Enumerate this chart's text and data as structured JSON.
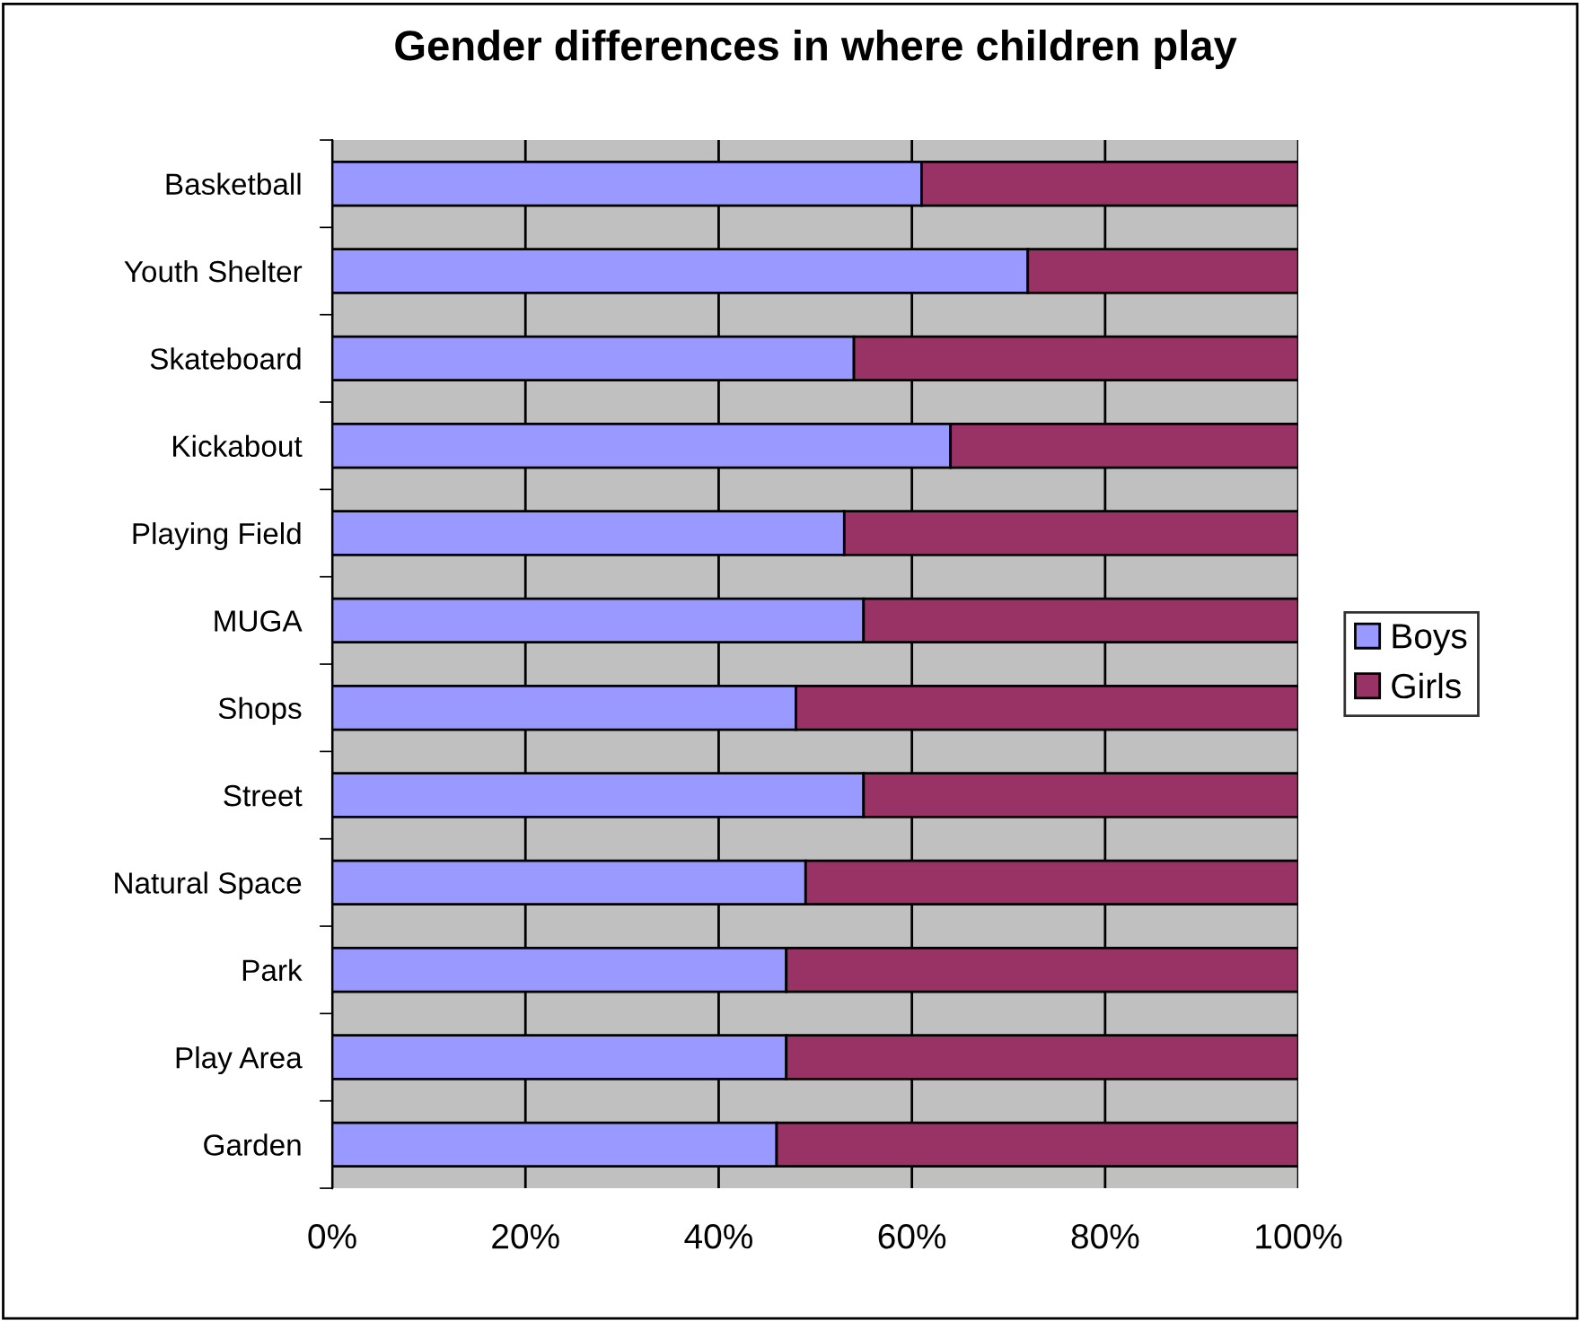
{
  "chart_data": {
    "type": "bar",
    "title": "Gender differences in where children play",
    "orientation": "horizontal",
    "stacked": true,
    "categories": [
      "Basketball",
      "Youth Shelter",
      "Skateboard",
      "Kickabout",
      "Playing Field",
      "MUGA",
      "Shops",
      "Street",
      "Natural Space",
      "Park",
      "Play Area",
      "Garden"
    ],
    "series": [
      {
        "name": "Boys",
        "color": "#9999ff",
        "values": [
          61,
          72,
          54,
          64,
          53,
          55,
          48,
          55,
          49,
          47,
          47,
          46
        ]
      },
      {
        "name": "Girls",
        "color": "#993366",
        "values": [
          39,
          28,
          46,
          36,
          47,
          45,
          52,
          45,
          51,
          53,
          53,
          54
        ]
      }
    ],
    "xlim": [
      0,
      100
    ],
    "xticks": [
      {
        "value": 0,
        "label": "0%"
      },
      {
        "value": 20,
        "label": "20%"
      },
      {
        "value": 40,
        "label": "40%"
      },
      {
        "value": 60,
        "label": "60%"
      },
      {
        "value": 80,
        "label": "80%"
      },
      {
        "value": 100,
        "label": "100%"
      }
    ],
    "grid": "x",
    "legend": "right"
  }
}
